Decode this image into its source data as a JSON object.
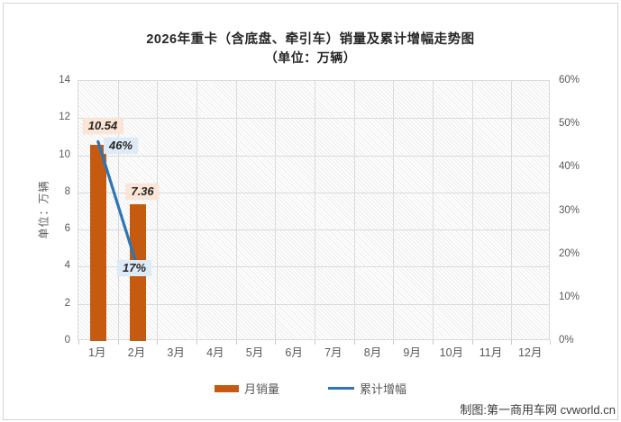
{
  "title": "2026年重卡（含底盘、牵引车）销量及累计增幅走势图",
  "subtitle": "（单位：万辆）",
  "watermark": "制图:第一商用车网 cvworld.cn",
  "colors": {
    "bar": "#C55A11",
    "line": "#2E75B6",
    "sales_label_bg": "#FBE5D6",
    "growth_label_bg": "#DEEBF7",
    "label_text": "#262626",
    "grid": "#DBDBDB",
    "tick_text": "#595959"
  },
  "chart_data": {
    "type": "bar+line",
    "title": "2026年重卡（含底盘、牵引车）销量及累计增幅走势图",
    "subtitle": "（单位：万辆）",
    "categories": [
      "1月",
      "2月",
      "3月",
      "4月",
      "5月",
      "6月",
      "7月",
      "8月",
      "9月",
      "10月",
      "11月",
      "12月"
    ],
    "series": [
      {
        "name": "月销量",
        "type": "bar",
        "y_axis": "left",
        "values": [
          10.54,
          7.36,
          null,
          null,
          null,
          null,
          null,
          null,
          null,
          null,
          null,
          null
        ],
        "data_labels": [
          "10.54",
          "7.36"
        ]
      },
      {
        "name": "累计增幅",
        "type": "line",
        "y_axis": "right",
        "values_percent": [
          46,
          17,
          null,
          null,
          null,
          null,
          null,
          null,
          null,
          null,
          null,
          null
        ],
        "data_labels": [
          "46%",
          "17%"
        ]
      }
    ],
    "left_axis": {
      "label": "单位：万辆",
      "min": 0,
      "max": 14,
      "step": 2,
      "ticks": [
        "0",
        "2",
        "4",
        "6",
        "8",
        "10",
        "12",
        "14"
      ]
    },
    "right_axis": {
      "min_percent": 0,
      "max_percent": 60,
      "step_percent": 10,
      "ticks": [
        "0%",
        "10%",
        "20%",
        "30%",
        "40%",
        "50%",
        "60%"
      ]
    },
    "grid": true,
    "legend_position": "bottom"
  }
}
